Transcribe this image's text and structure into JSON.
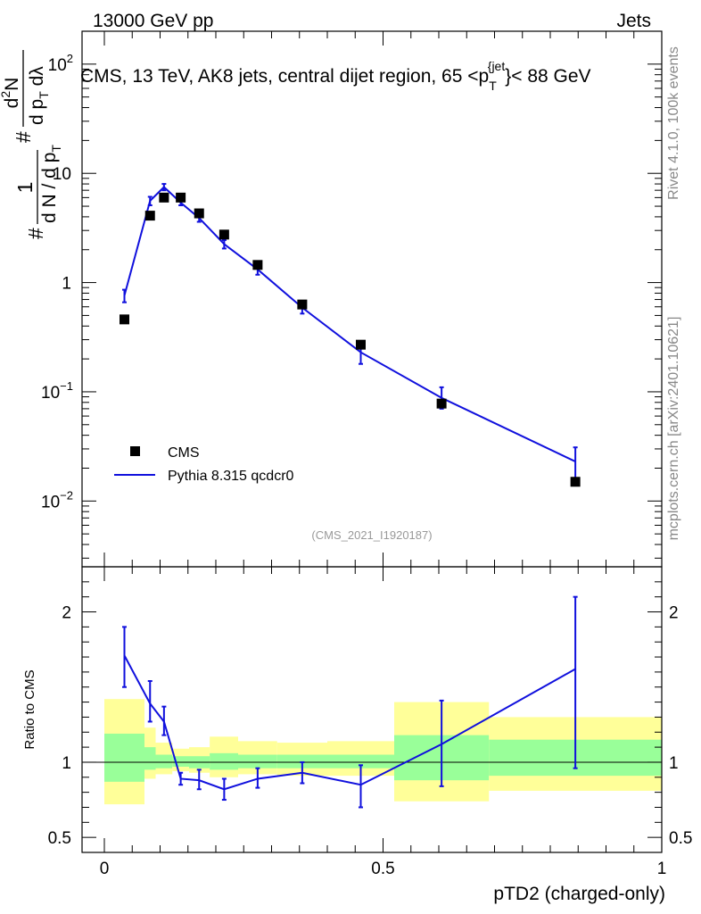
{
  "header": {
    "left": "13000 GeV pp",
    "right": "Jets"
  },
  "side_text": {
    "rivet": "Rivet 4.1.0,  100k events",
    "mcplots": "mcplots.cern.ch [arXiv:2401.10621]"
  },
  "analysis_id": "(CMS_2021_I1920187)",
  "chart_data": [
    {
      "type": "scatter",
      "panel": "main",
      "title": "CMS, 13 TeV, AK8 jets, central dijet region, 65 <p_T^{jet}< 88 GeV",
      "title_parts": {
        "pre": "CMS, 13 TeV, AK8 jets, central dijet region, 65 <p",
        "sub": "T",
        "sup": "{jet",
        "post": "}< 88 GeV"
      },
      "ylabel": "1/(dN/dpT) d²N/dpT dλ",
      "ylabel_parts": {
        "numer": "d",
        "numer_exp": "2",
        "numer_rest": "N",
        "denom_d": "d p",
        "denom_sub": "T",
        "denom_rest": " dλ",
        "hash": "#",
        "one": "1",
        "left_denom": "d N / d p",
        "left_sub": "T"
      },
      "yscale": "log",
      "ylim": [
        0.0025,
        200
      ],
      "xlim": [
        -0.04,
        1.0
      ],
      "y_ticks": [
        {
          "value": 100,
          "base": "10",
          "exp": "2"
        },
        {
          "value": 10,
          "base": "10",
          "exp": ""
        },
        {
          "value": 1,
          "base": "1",
          "exp": ""
        },
        {
          "value": 0.1,
          "base": "10",
          "exp": "−1"
        },
        {
          "value": 0.01,
          "base": "10",
          "exp": "−2"
        }
      ],
      "legend": {
        "placement": "bottom-left",
        "entries": [
          "CMS",
          "Pythia 8.315 qcdcr0"
        ]
      },
      "series": [
        {
          "name": "CMS",
          "style": "black-square-markers",
          "x": [
            0.036,
            0.082,
            0.107,
            0.137,
            0.17,
            0.215,
            0.275,
            0.355,
            0.46,
            0.605,
            0.845
          ],
          "y": [
            0.46,
            4.1,
            6.0,
            6.0,
            4.3,
            2.75,
            1.45,
            0.63,
            0.27,
            0.078,
            0.015
          ]
        },
        {
          "name": "Pythia 8.315 qcdcr0",
          "style": "blue-line",
          "color": "#1010dd",
          "x": [
            0.036,
            0.082,
            0.107,
            0.137,
            0.17,
            0.215,
            0.275,
            0.355,
            0.46,
            0.605,
            0.845
          ],
          "y": [
            0.76,
            5.6,
            7.5,
            5.4,
            3.9,
            2.25,
            1.32,
            0.59,
            0.23,
            0.088,
            0.023
          ],
          "yerr_low": [
            0.66,
            5.1,
            7.0,
            5.1,
            3.6,
            2.05,
            1.18,
            0.52,
            0.18,
            0.07,
            0.016
          ],
          "yerr_high": [
            0.86,
            6.1,
            8.0,
            5.7,
            4.2,
            2.45,
            1.46,
            0.66,
            0.28,
            0.11,
            0.031
          ]
        }
      ]
    },
    {
      "type": "line",
      "panel": "ratio",
      "xlabel": "pTD2 (charged-only)",
      "ylabel": "Ratio to CMS",
      "xlim": [
        -0.04,
        1.0
      ],
      "ylim": [
        0.4,
        2.3
      ],
      "x_ticks": [
        0,
        0.5,
        1
      ],
      "x_tick_labels": [
        "0",
        "0.5",
        "1"
      ],
      "y_ticks": [
        0.5,
        1,
        2
      ],
      "y_tick_labels": [
        "0.5",
        "1",
        "2"
      ],
      "reference_line": 1,
      "bands": {
        "bin_edges": [
          0.0,
          0.072,
          0.092,
          0.122,
          0.152,
          0.189,
          0.24,
          0.31,
          0.4,
          0.52,
          0.69,
          1.0
        ],
        "green_low": [
          0.87,
          0.95,
          0.96,
          0.97,
          0.96,
          0.95,
          0.96,
          0.96,
          0.96,
          0.88,
          0.91
        ],
        "green_high": [
          1.19,
          1.1,
          1.05,
          1.04,
          1.04,
          1.06,
          1.05,
          1.05,
          1.05,
          1.18,
          1.15
        ],
        "yellow_low": [
          0.72,
          0.89,
          0.92,
          0.94,
          0.93,
          0.9,
          0.92,
          0.91,
          0.91,
          0.74,
          0.81
        ],
        "yellow_high": [
          1.42,
          1.23,
          1.13,
          1.09,
          1.1,
          1.17,
          1.14,
          1.13,
          1.14,
          1.4,
          1.3
        ],
        "green_color": "#99ff99",
        "yellow_color": "#ffff99"
      },
      "series": [
        {
          "name": "Pythia 8.315 qcdcr0 / CMS",
          "color": "#1010dd",
          "x": [
            0.036,
            0.082,
            0.107,
            0.137,
            0.17,
            0.215,
            0.275,
            0.355,
            0.46,
            0.605,
            0.845
          ],
          "y": [
            1.71,
            1.39,
            1.27,
            0.89,
            0.88,
            0.82,
            0.89,
            0.93,
            0.85,
            1.12,
            1.62
          ],
          "yerr_low": [
            1.5,
            1.27,
            1.18,
            0.85,
            0.82,
            0.75,
            0.83,
            0.86,
            0.7,
            0.84,
            0.96
          ],
          "yerr_high": [
            1.9,
            1.54,
            1.37,
            0.93,
            0.95,
            0.89,
            0.96,
            1.0,
            0.98,
            1.41,
            2.1
          ]
        }
      ]
    }
  ]
}
